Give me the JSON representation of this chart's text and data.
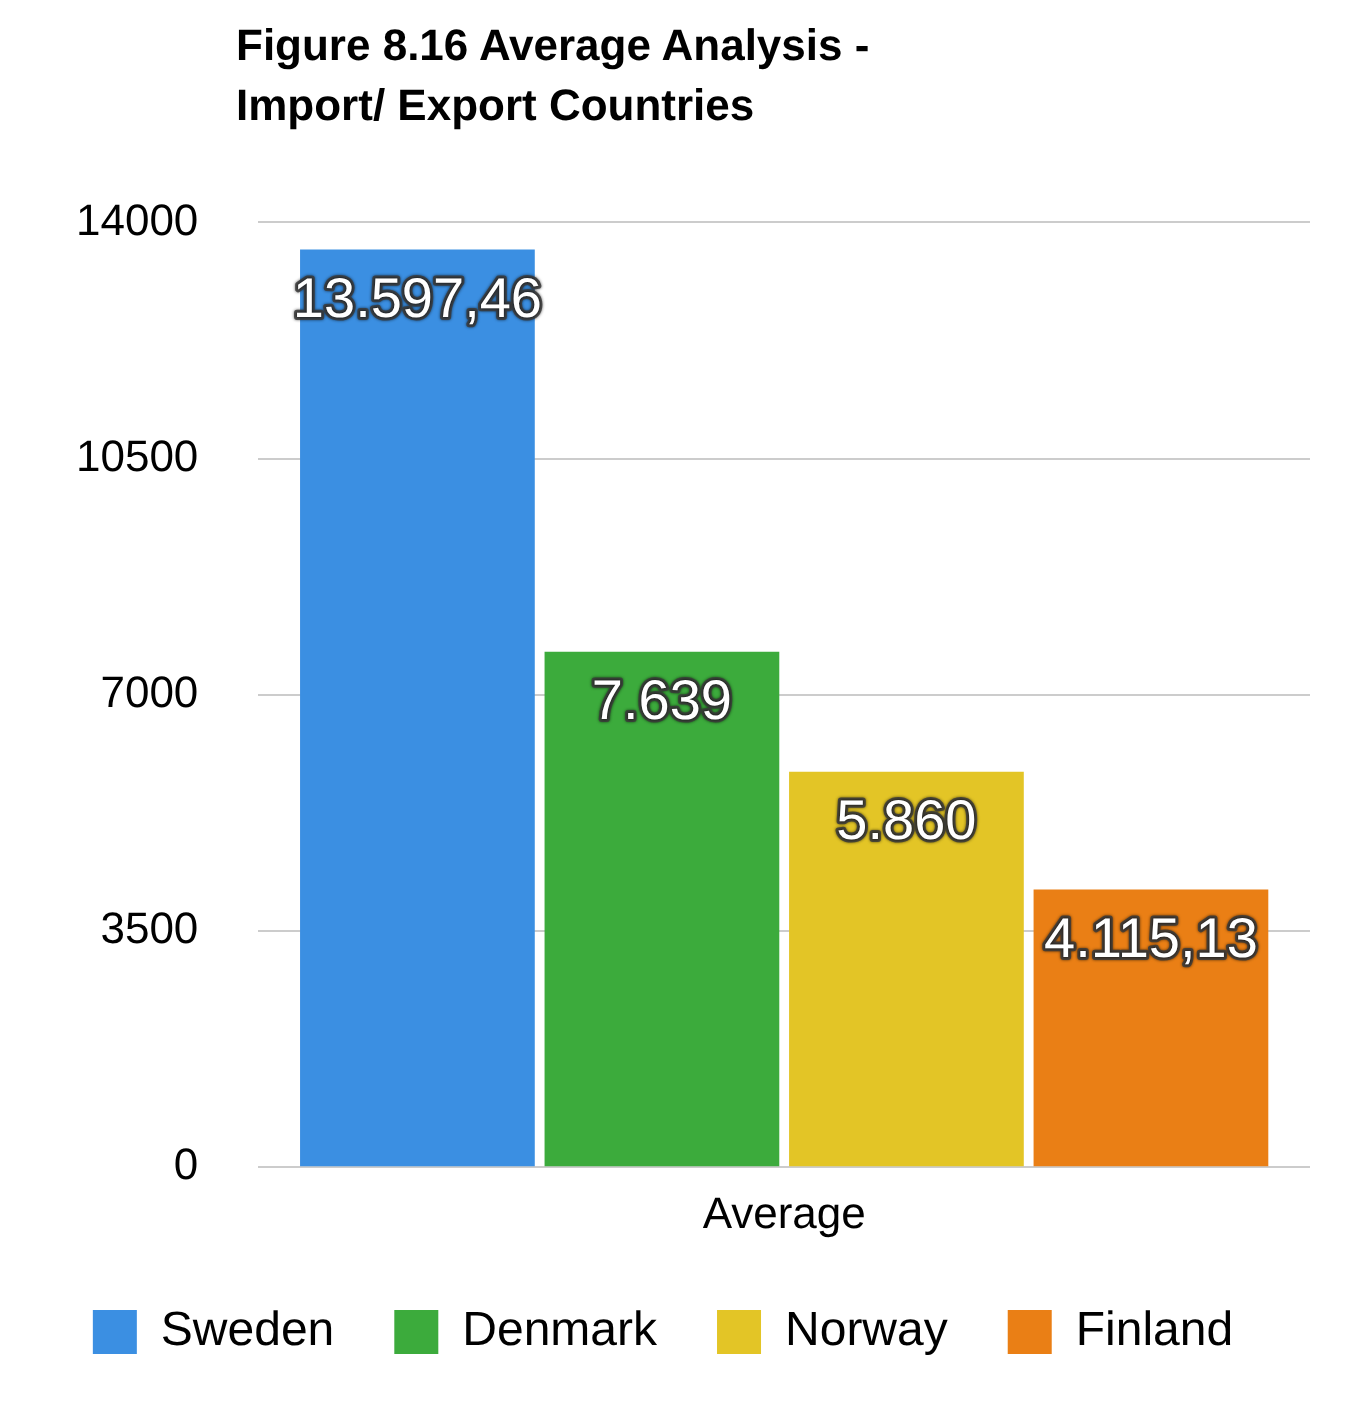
{
  "chart_data": {
    "type": "bar",
    "title": "Figure 8.16 Average Analysis - Import/ Export Countries",
    "categories": [
      "Average"
    ],
    "series": [
      {
        "name": "Sweden",
        "color": "#3b8fe2",
        "values": [
          13597.46
        ],
        "value_labels": [
          "13.597,46"
        ]
      },
      {
        "name": "Denmark",
        "color": "#3cab3c",
        "values": [
          7639
        ],
        "value_labels": [
          "7.639"
        ]
      },
      {
        "name": "Norway",
        "color": "#e3c526",
        "values": [
          5860
        ],
        "value_labels": [
          "5.860"
        ]
      },
      {
        "name": "Finland",
        "color": "#ea7f15",
        "values": [
          4115.13
        ],
        "value_labels": [
          "4.115,13"
        ]
      }
    ],
    "ylim": [
      0,
      14000
    ],
    "yticks": [
      0,
      3500,
      7000,
      10500,
      14000
    ],
    "grid": "y",
    "legend": "bottom"
  }
}
